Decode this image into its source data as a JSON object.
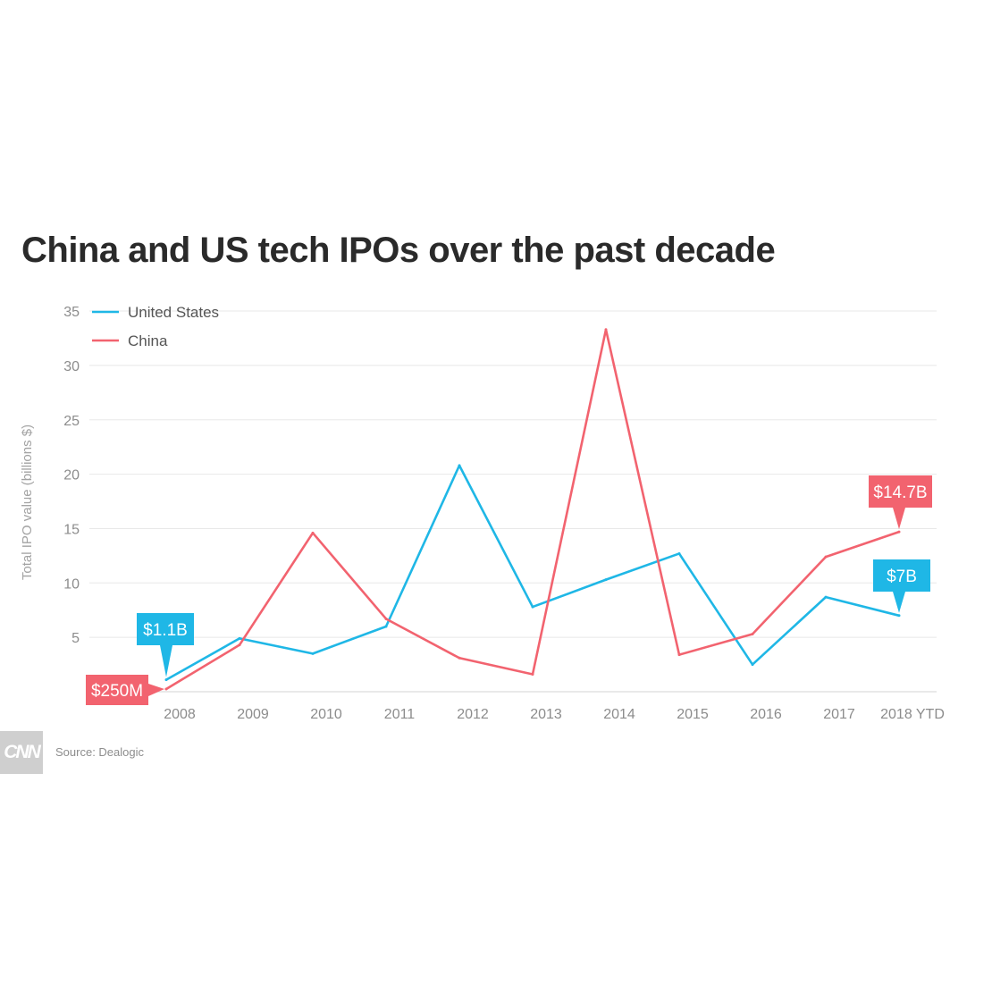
{
  "chart_data": {
    "type": "line",
    "title": "China and US tech IPOs over the past decade",
    "ylabel": "Total IPO value (billions $)",
    "xlabel": "",
    "categories": [
      "2008",
      "2009",
      "2010",
      "2011",
      "2012",
      "2013",
      "2014",
      "2015",
      "2016",
      "2017",
      "2018 YTD"
    ],
    "yticks": [
      5,
      10,
      15,
      20,
      25,
      30,
      35
    ],
    "ylim": [
      0,
      35
    ],
    "grid": true,
    "legend_position": "top-left",
    "series": [
      {
        "name": "United States",
        "color": "#1fb7e6",
        "values": [
          1.1,
          4.9,
          3.5,
          6.0,
          20.8,
          7.8,
          10.3,
          12.7,
          2.5,
          8.7,
          7.0
        ]
      },
      {
        "name": "China",
        "color": "#f2636f",
        "values": [
          0.25,
          4.3,
          14.6,
          6.7,
          3.1,
          1.6,
          33.3,
          3.4,
          5.3,
          12.4,
          14.7
        ]
      }
    ],
    "annotations": [
      {
        "series": "United States",
        "index": 0,
        "text": "$1.1B",
        "color": "#1fb7e6"
      },
      {
        "series": "China",
        "index": 0,
        "text": "$250M",
        "color": "#f2636f"
      },
      {
        "series": "China",
        "index": 10,
        "text": "$14.7B",
        "color": "#f2636f"
      },
      {
        "series": "United States",
        "index": 10,
        "text": "$7B",
        "color": "#1fb7e6"
      }
    ]
  },
  "footer": {
    "logo_text": "CNN",
    "source": "Source: Dealogic"
  }
}
